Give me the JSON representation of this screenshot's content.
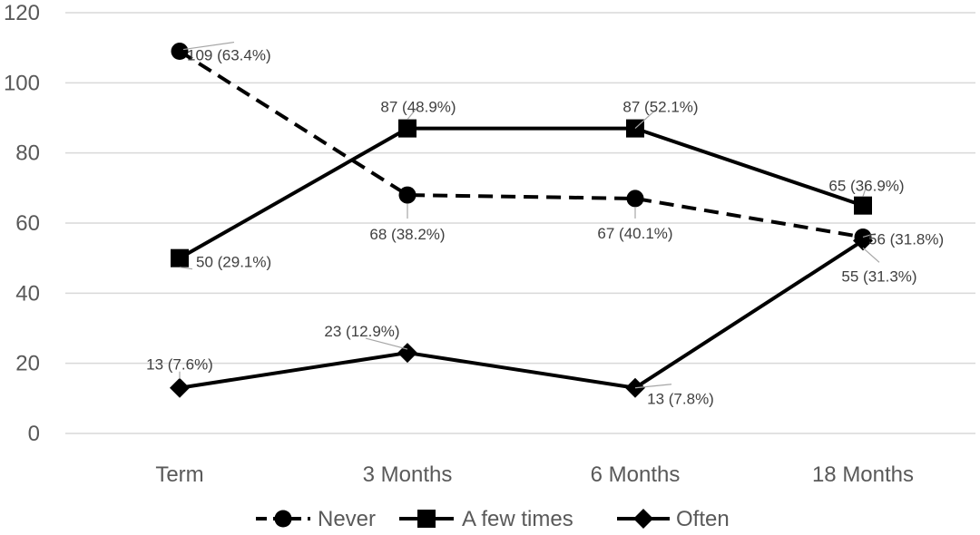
{
  "chart_data": {
    "type": "line",
    "categories": [
      "Term",
      "3 Months",
      "6 Months",
      "18 Months"
    ],
    "ylim": [
      0,
      120
    ],
    "yticks": [
      0,
      20,
      40,
      60,
      80,
      100,
      120
    ],
    "grid": true,
    "legend_position": "bottom",
    "series": [
      {
        "name": "Never",
        "values": [
          109,
          68,
          67,
          56
        ],
        "labels": [
          "109 (63.4%)",
          "68 (38.2%)",
          "67 (40.1%)",
          "56 (31.8%)"
        ],
        "line_style": "dashed",
        "marker": "circle",
        "color": "#000000"
      },
      {
        "name": "A few times",
        "values": [
          50,
          87,
          87,
          65
        ],
        "labels": [
          "50 (29.1%)",
          "87 (48.9%)",
          "87 (52.1%)",
          "65 (36.9%)"
        ],
        "line_style": "solid",
        "marker": "square",
        "color": "#000000"
      },
      {
        "name": "Often",
        "values": [
          13,
          23,
          13,
          55
        ],
        "labels": [
          "13 (7.6%)",
          "23 (12.9%)",
          "13 (7.8%)",
          "55 (31.3%)"
        ],
        "line_style": "solid",
        "marker": "diamond",
        "color": "#000000"
      }
    ],
    "colors": {
      "grid": "#d9d9d9",
      "text": "#595959",
      "leader": "#a6a6a6"
    }
  }
}
